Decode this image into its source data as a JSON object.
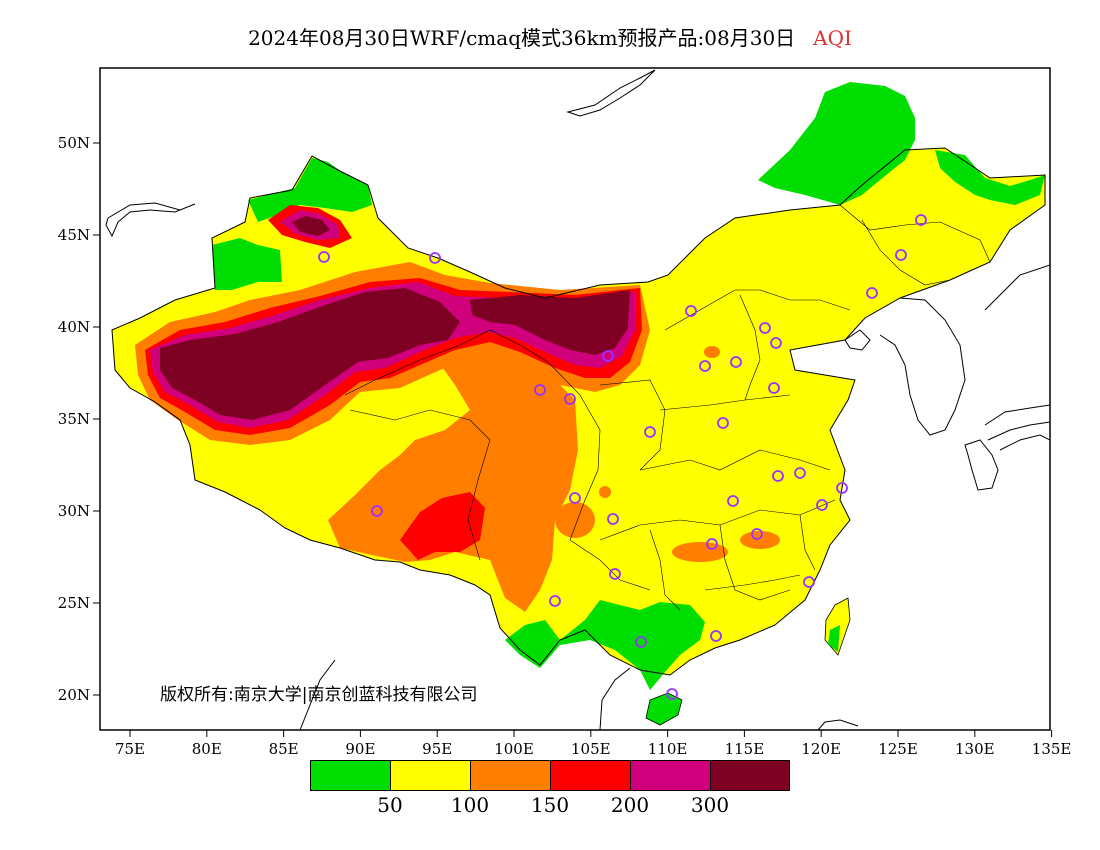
{
  "title": {
    "main": "2024年08月30日WRF/cmaq模式36km预报产品:08月30日",
    "variable": "AQI"
  },
  "copyright": "版权所有:南京大学|南京创蓝科技有限公司",
  "axes": {
    "x_ticks": [
      "75E",
      "80E",
      "85E",
      "90E",
      "95E",
      "100E",
      "105E",
      "110E",
      "115E",
      "120E",
      "125E",
      "130E",
      "135E"
    ],
    "y_ticks": [
      "20N",
      "25N",
      "30N",
      "35N",
      "40N",
      "45N",
      "50N"
    ]
  },
  "legend": {
    "colors": [
      "#00dd00",
      "#ffff00",
      "#ff7e00",
      "#ff0000",
      "#d0007c",
      "#7e0023"
    ],
    "tick_labels": [
      "50",
      "100",
      "150",
      "200",
      "300"
    ]
  },
  "colors": {
    "good": "#00dd00",
    "moderate": "#ffff00",
    "usg": "#ff7e00",
    "unhealthy": "#ff0000",
    "very_unhealthy": "#d0007c",
    "hazardous": "#7e0023",
    "city_marker": "#9b30ff"
  },
  "city_marker_icon": "circle-icon"
}
